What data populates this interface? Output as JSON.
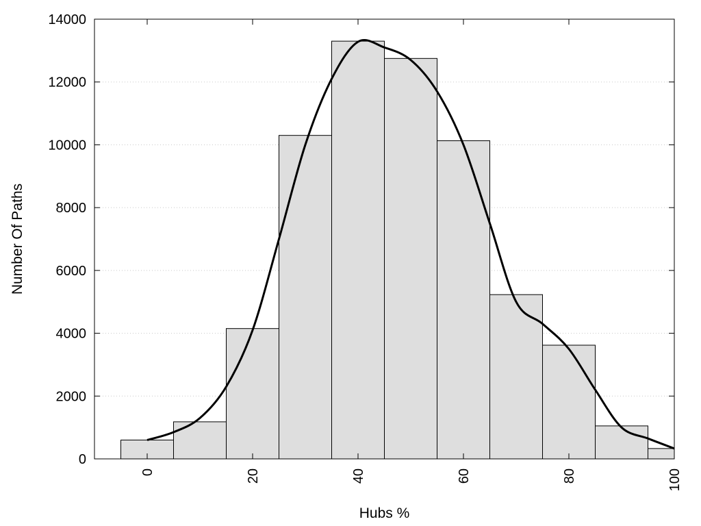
{
  "chart_data": {
    "type": "bar",
    "xlabel": "Hubs %",
    "ylabel": "Number Of Paths",
    "xlim": [
      -10,
      100
    ],
    "ylim": [
      0,
      14000
    ],
    "grid": "horizontal dotted",
    "x_ticks": [
      "0",
      "20",
      "40",
      "60",
      "80",
      "100"
    ],
    "y_ticks": [
      "0",
      "2000",
      "4000",
      "6000",
      "8000",
      "10000",
      "12000",
      "14000"
    ],
    "bins": [
      {
        "from": -5,
        "to": 5,
        "value": 600
      },
      {
        "from": 5,
        "to": 15,
        "value": 1180
      },
      {
        "from": 15,
        "to": 25,
        "value": 4150
      },
      {
        "from": 25,
        "to": 35,
        "value": 10300
      },
      {
        "from": 35,
        "to": 45,
        "value": 13300
      },
      {
        "from": 45,
        "to": 55,
        "value": 12750
      },
      {
        "from": 55,
        "to": 65,
        "value": 10130
      },
      {
        "from": 65,
        "to": 75,
        "value": 5230
      },
      {
        "from": 75,
        "to": 85,
        "value": 3620
      },
      {
        "from": 85,
        "to": 95,
        "value": 1050
      },
      {
        "from": 95,
        "to": 100,
        "value": 330
      }
    ],
    "density_curve": [
      {
        "x": 0,
        "y": 600
      },
      {
        "x": 5,
        "y": 850
      },
      {
        "x": 10,
        "y": 1300
      },
      {
        "x": 15,
        "y": 2300
      },
      {
        "x": 20,
        "y": 4100
      },
      {
        "x": 25,
        "y": 7000
      },
      {
        "x": 30,
        "y": 10000
      },
      {
        "x": 35,
        "y": 12100
      },
      {
        "x": 40,
        "y": 13280
      },
      {
        "x": 45,
        "y": 13100
      },
      {
        "x": 50,
        "y": 12700
      },
      {
        "x": 55,
        "y": 11700
      },
      {
        "x": 60,
        "y": 10000
      },
      {
        "x": 65,
        "y": 7500
      },
      {
        "x": 70,
        "y": 5000
      },
      {
        "x": 75,
        "y": 4300
      },
      {
        "x": 80,
        "y": 3500
      },
      {
        "x": 85,
        "y": 2200
      },
      {
        "x": 90,
        "y": 1000
      },
      {
        "x": 95,
        "y": 650
      },
      {
        "x": 100,
        "y": 330
      }
    ],
    "colors": {
      "bar_fill": "#dedede",
      "bar_stroke": "#000000",
      "curve": "#000000",
      "grid": "#c8c8c8"
    }
  }
}
